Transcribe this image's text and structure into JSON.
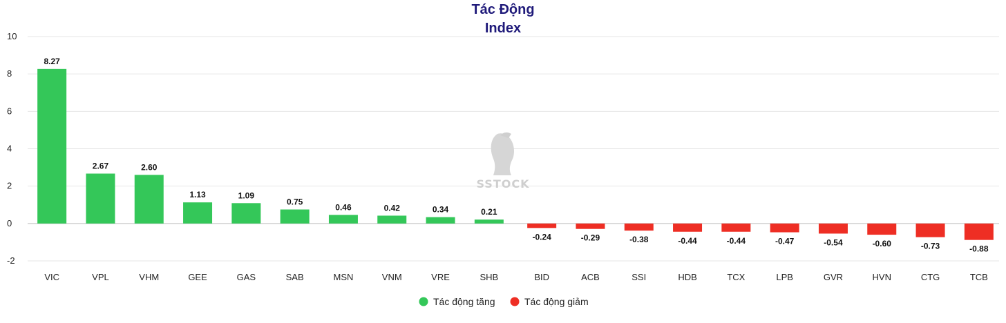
{
  "chart_data": {
    "type": "bar",
    "title": "Tác Động",
    "subtitle": "Index",
    "categories": [
      "VIC",
      "VPL",
      "VHM",
      "GEE",
      "GAS",
      "SAB",
      "MSN",
      "VNM",
      "VRE",
      "SHB",
      "BID",
      "ACB",
      "SSI",
      "HDB",
      "TCX",
      "LPB",
      "GVR",
      "HVN",
      "CTG",
      "TCB"
    ],
    "values": [
      8.27,
      2.67,
      2.6,
      1.13,
      1.09,
      0.75,
      0.46,
      0.42,
      0.34,
      0.21,
      -0.24,
      -0.29,
      -0.38,
      -0.44,
      -0.44,
      -0.47,
      -0.54,
      -0.6,
      -0.73,
      -0.88
    ],
    "value_labels": [
      "8.27",
      "2.67",
      "2.60",
      "1.13",
      "1.09",
      "0.75",
      "0.46",
      "0.42",
      "0.34",
      "0.21",
      "-0.24",
      "-0.29",
      "-0.38",
      "-0.44",
      "-0.44",
      "-0.47",
      "-0.54",
      "-0.60",
      "-0.73",
      "-0.88"
    ],
    "ylim": [
      -2,
      10
    ],
    "yticks": [
      -2,
      0,
      2,
      4,
      6,
      8,
      10
    ],
    "grid": true,
    "legend": [
      {
        "name": "Tác động tăng",
        "color": "#34c759"
      },
      {
        "name": "Tác động giảm",
        "color": "#ee2e24"
      }
    ],
    "legend_position": "bottom-center",
    "xlabel": "",
    "ylabel": ""
  },
  "watermark": {
    "text": "SSTOCK",
    "icon": "horse-head-icon"
  },
  "colors": {
    "up": "#34c759",
    "down": "#ee2e24",
    "title": "#1f1a7a",
    "grid": "#e6e6e6",
    "axis": "#bdbdbd"
  }
}
